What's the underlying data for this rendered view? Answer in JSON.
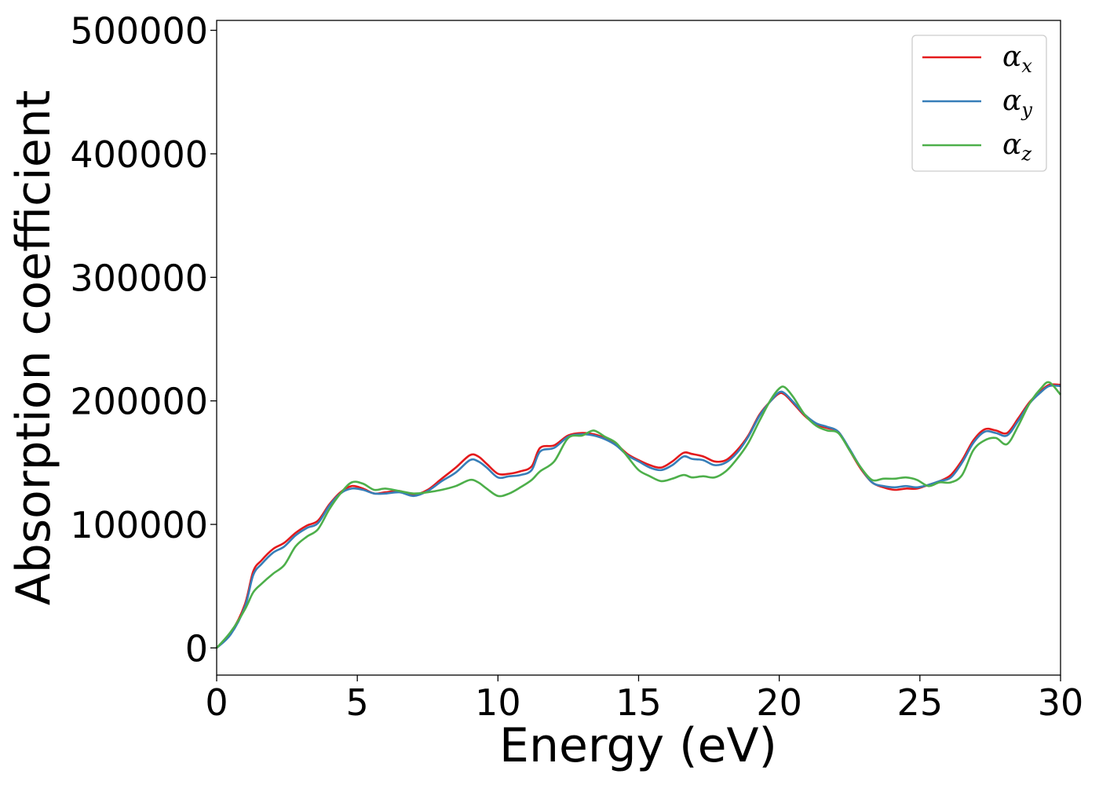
{
  "chart_data": {
    "type": "line",
    "title": "",
    "xlabel": "Energy (eV)",
    "ylabel": "Absorption coefficient",
    "xlim": [
      0,
      30
    ],
    "ylim": [
      -22000,
      508000
    ],
    "xticks": [
      0,
      5,
      10,
      15,
      20,
      25,
      30
    ],
    "xtick_labels": [
      "0",
      "5",
      "10",
      "15",
      "20",
      "25",
      "30"
    ],
    "yticks": [
      0,
      100000,
      200000,
      300000,
      400000,
      500000
    ],
    "ytick_labels": [
      "0",
      "100000",
      "200000",
      "300000",
      "400000",
      "500000"
    ],
    "grid": false,
    "legend_position": "top-right",
    "x": [
      0,
      0.5,
      1,
      1.3,
      1.6,
      2,
      2.4,
      2.8,
      3.2,
      3.6,
      4,
      4.4,
      4.8,
      5.2,
      5.6,
      6,
      6.5,
      7,
      7.5,
      8,
      8.5,
      9,
      9.3,
      9.6,
      10,
      10.4,
      10.8,
      11.2,
      11.5,
      12,
      12.5,
      13,
      13.4,
      13.8,
      14.2,
      14.6,
      15,
      15.4,
      15.8,
      16.2,
      16.6,
      16.9,
      17.3,
      17.7,
      18.1,
      18.5,
      18.9,
      19.3,
      19.7,
      20,
      20.2,
      20.5,
      20.9,
      21.3,
      21.7,
      22.1,
      22.5,
      22.9,
      23.3,
      23.7,
      24.1,
      24.5,
      24.9,
      25.3,
      25.7,
      26.1,
      26.5,
      26.9,
      27.3,
      27.7,
      28.1,
      28.5,
      28.9,
      29.3,
      29.6,
      30
    ],
    "series": [
      {
        "name": "α",
        "subscript": "x",
        "color": "#e41a1c",
        "values": [
          0,
          12000,
          35000,
          62000,
          71000,
          80000,
          85000,
          93000,
          99000,
          103000,
          116000,
          126000,
          131000,
          129000,
          125000,
          126000,
          127000,
          124000,
          128000,
          137000,
          146000,
          156000,
          155000,
          149000,
          141000,
          141000,
          143000,
          147000,
          162000,
          164000,
          172000,
          174000,
          173000,
          170000,
          165000,
          157000,
          152000,
          148000,
          146000,
          151000,
          158000,
          157000,
          155000,
          151000,
          152000,
          160000,
          172000,
          189000,
          200000,
          206000,
          205000,
          198000,
          188000,
          181000,
          178000,
          175000,
          160000,
          145000,
          134000,
          130000,
          128000,
          129000,
          129000,
          132000,
          135000,
          140000,
          152000,
          168000,
          177000,
          176000,
          174000,
          186000,
          199000,
          208000,
          213000,
          213000
        ]
      },
      {
        "name": "α",
        "subscript": "y",
        "color": "#377eb8",
        "values": [
          0,
          11000,
          33000,
          59000,
          68000,
          77000,
          82000,
          91000,
          97000,
          101000,
          115000,
          125000,
          129000,
          128000,
          125000,
          125000,
          126000,
          123000,
          127000,
          135000,
          142000,
          152000,
          151000,
          146000,
          138000,
          139000,
          140000,
          144000,
          159000,
          162000,
          171000,
          173000,
          172000,
          169000,
          164000,
          156000,
          151000,
          146000,
          144000,
          148000,
          155000,
          153000,
          152000,
          148000,
          150000,
          158000,
          171000,
          188000,
          200000,
          207000,
          206000,
          199000,
          189000,
          182000,
          179000,
          175000,
          161000,
          146000,
          134000,
          131000,
          130000,
          131000,
          130000,
          132000,
          135000,
          138000,
          150000,
          166000,
          175000,
          174000,
          172000,
          184000,
          198000,
          207000,
          212000,
          212000
        ]
      },
      {
        "name": "α",
        "subscript": "z",
        "color": "#4daf4a",
        "values": [
          0,
          13000,
          31000,
          45000,
          52000,
          60000,
          67000,
          82000,
          90000,
          96000,
          112000,
          125000,
          134000,
          133000,
          128000,
          129000,
          127000,
          125000,
          126000,
          128000,
          131000,
          136000,
          134000,
          129000,
          123000,
          125000,
          130000,
          136000,
          143000,
          151000,
          170000,
          172000,
          176000,
          171000,
          166000,
          155000,
          144000,
          139000,
          135000,
          137000,
          140000,
          138000,
          139000,
          138000,
          143000,
          153000,
          166000,
          184000,
          201000,
          210000,
          211000,
          203000,
          189000,
          180000,
          176000,
          174000,
          160000,
          146000,
          136000,
          137000,
          137000,
          138000,
          136000,
          131000,
          134000,
          134000,
          140000,
          160000,
          168000,
          170000,
          165000,
          180000,
          198000,
          210000,
          215000,
          205000
        ]
      }
    ]
  }
}
